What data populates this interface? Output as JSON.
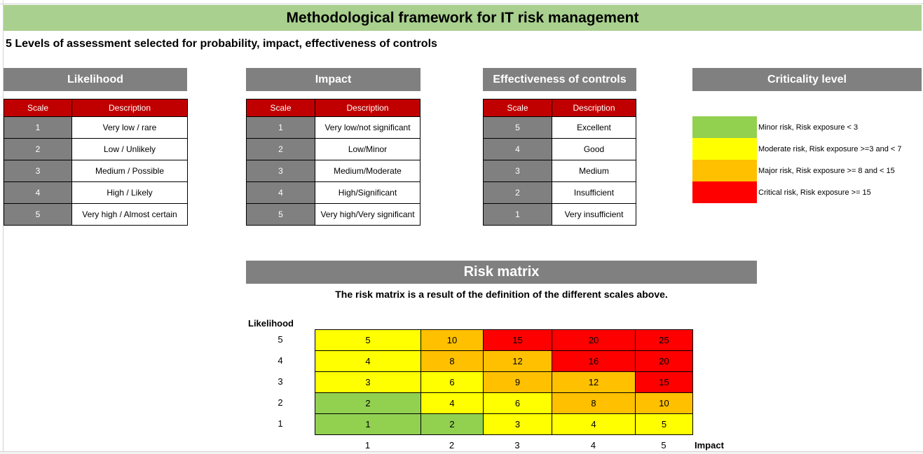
{
  "title": "Methodological framework for IT risk management",
  "subtitle": "5 Levels of assessment selected for probability, impact, effectiveness of controls",
  "colors": {
    "title_bg": "#a9d08e",
    "header_bg": "#808080",
    "table_header_bg": "#c00000",
    "green": "#92d050",
    "yellow": "#ffff00",
    "orange": "#ffc000",
    "red": "#ff0000"
  },
  "likelihood": {
    "header": "Likelihood",
    "col_scale": "Scale",
    "col_desc": "Description",
    "rows": [
      {
        "scale": "1",
        "desc": "Very low / rare"
      },
      {
        "scale": "2",
        "desc": "Low / Unlikely"
      },
      {
        "scale": "3",
        "desc": "Medium / Possible"
      },
      {
        "scale": "4",
        "desc": "High / Likely"
      },
      {
        "scale": "5",
        "desc": "Very high / Almost certain"
      }
    ]
  },
  "impact": {
    "header": "Impact",
    "col_scale": "Scale",
    "col_desc": "Description",
    "rows": [
      {
        "scale": "1",
        "desc": "Very low/not significant"
      },
      {
        "scale": "2",
        "desc": "Low/Minor"
      },
      {
        "scale": "3",
        "desc": "Medium/Moderate"
      },
      {
        "scale": "4",
        "desc": "High/Significant"
      },
      {
        "scale": "5",
        "desc": "Very high/Very significant"
      }
    ]
  },
  "controls": {
    "header": "Effectiveness of controls",
    "col_scale": "Scale",
    "col_desc": "Description",
    "rows": [
      {
        "scale": "5",
        "desc": "Excellent"
      },
      {
        "scale": "4",
        "desc": "Good"
      },
      {
        "scale": "3",
        "desc": "Medium"
      },
      {
        "scale": "2",
        "desc": "Insufficient"
      },
      {
        "scale": "1",
        "desc": "Very insufficient"
      }
    ]
  },
  "criticality": {
    "header": "Criticality level",
    "levels": [
      {
        "color": "#92d050",
        "label": "Minor risk, Risk exposure < 3"
      },
      {
        "color": "#ffff00",
        "label": "Moderate risk, Risk exposure >=3 and < 7"
      },
      {
        "color": "#ffc000",
        "label": "Major risk, Risk exposure >= 8 and < 15"
      },
      {
        "color": "#ff0000",
        "label": "Critical risk, Risk exposure >= 15"
      }
    ]
  },
  "matrix": {
    "header": "Risk matrix",
    "note": "The risk matrix is a result of the definition of the different scales above.",
    "y_title": "Likelihood",
    "x_title": "Impact",
    "row_labels": [
      "5",
      "4",
      "3",
      "2",
      "1"
    ],
    "col_labels": [
      "1",
      "2",
      "3",
      "4",
      "5"
    ],
    "rows": [
      [
        {
          "v": "5",
          "c": "#ffff00"
        },
        {
          "v": "10",
          "c": "#ffc000"
        },
        {
          "v": "15",
          "c": "#ff0000"
        },
        {
          "v": "20",
          "c": "#ff0000"
        },
        {
          "v": "25",
          "c": "#ff0000"
        }
      ],
      [
        {
          "v": "4",
          "c": "#ffff00"
        },
        {
          "v": "8",
          "c": "#ffc000"
        },
        {
          "v": "12",
          "c": "#ffc000"
        },
        {
          "v": "16",
          "c": "#ff0000"
        },
        {
          "v": "20",
          "c": "#ff0000"
        }
      ],
      [
        {
          "v": "3",
          "c": "#ffff00"
        },
        {
          "v": "6",
          "c": "#ffff00"
        },
        {
          "v": "9",
          "c": "#ffc000"
        },
        {
          "v": "12",
          "c": "#ffc000"
        },
        {
          "v": "15",
          "c": "#ff0000"
        }
      ],
      [
        {
          "v": "2",
          "c": "#92d050"
        },
        {
          "v": "4",
          "c": "#ffff00"
        },
        {
          "v": "6",
          "c": "#ffff00"
        },
        {
          "v": "8",
          "c": "#ffc000"
        },
        {
          "v": "10",
          "c": "#ffc000"
        }
      ],
      [
        {
          "v": "1",
          "c": "#92d050"
        },
        {
          "v": "2",
          "c": "#92d050"
        },
        {
          "v": "3",
          "c": "#ffff00"
        },
        {
          "v": "4",
          "c": "#ffff00"
        },
        {
          "v": "5",
          "c": "#ffff00"
        }
      ]
    ]
  }
}
